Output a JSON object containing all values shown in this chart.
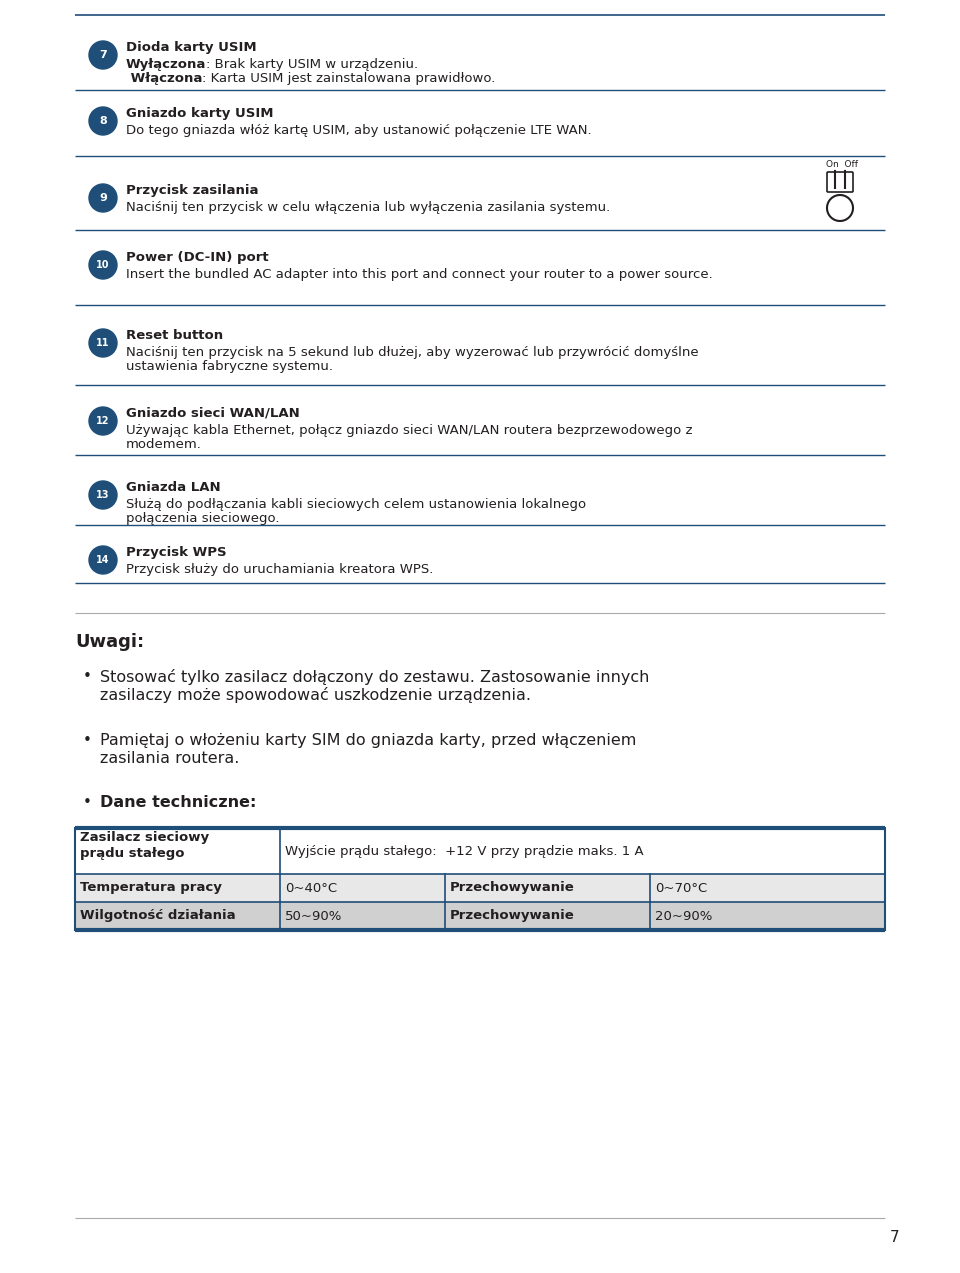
{
  "bg_color": "#ffffff",
  "page_bg": "#ffffff",
  "text_color": "#231f20",
  "blue_color": "#1f4e79",
  "circle_bg": "#1f4e79",
  "circle_text": "#ffffff",
  "line_color": "#1f4e79",
  "light_line_color": "#888888",
  "page_number": "7",
  "items": [
    {
      "num": "7",
      "title": "Dioda karty USIM",
      "lines": [
        [
          {
            "bold": true,
            "text": "Wyłączona"
          },
          {
            "bold": false,
            "text": ": Brak karty USIM w urządzeniu."
          }
        ],
        [
          {
            "bold": true,
            "text": " Włączona"
          },
          {
            "bold": false,
            "text": ": Karta USIM jest zainstalowana prawidłowo."
          }
        ]
      ]
    },
    {
      "num": "8",
      "title": "Gniazdo karty USIM",
      "lines": [
        [
          {
            "bold": false,
            "text": "Do tego gniazda włóż kartę USIM, aby ustanowić połączenie LTE WAN."
          }
        ]
      ]
    },
    {
      "num": "9",
      "title": "Przycisk zasilania",
      "lines": [
        [
          {
            "bold": false,
            "text": "Naciśnij ten przycisk w celu włączenia lub wyłączenia zasilania systemu."
          }
        ]
      ],
      "has_icon": true
    },
    {
      "num": "10",
      "title": "Power (DC-IN) port",
      "lines": [
        [
          {
            "bold": false,
            "text": "Insert the bundled AC adapter into this port and connect your router to a power source."
          }
        ]
      ]
    },
    {
      "num": "11",
      "title": "Reset button",
      "lines": [
        [
          {
            "bold": false,
            "text": "Naciśnij ten przycisk na 5 sekund lub dłużej, aby wyzerować lub przywrócić domyślne"
          }
        ],
        [
          {
            "bold": false,
            "text": "ustawienia fabryczne systemu."
          }
        ]
      ]
    },
    {
      "num": "12",
      "title": "Gniazdo sieci WAN/LAN",
      "lines": [
        [
          {
            "bold": false,
            "text": "Używając kabla Ethernet, połącz gniazdo sieci WAN/LAN routera bezprzewodowego z"
          }
        ],
        [
          {
            "bold": false,
            "text": "modemem."
          }
        ]
      ]
    },
    {
      "num": "13",
      "title": "Gniazda LAN",
      "lines": [
        [
          {
            "bold": false,
            "text": "Służą do podłączania kabli sieciowych celem ustanowienia lokalnego"
          }
        ],
        [
          {
            "bold": false,
            "text": "połączenia sieciowego."
          }
        ]
      ]
    },
    {
      "num": "14",
      "title": "Przycisk WPS",
      "lines": [
        [
          {
            "bold": false,
            "text": "Przycisk służy do uruchamiania kreatora WPS."
          }
        ]
      ]
    }
  ],
  "uwagi_title": "Uwagi:",
  "bullets": [
    {
      "bold": false,
      "line1": "Stosować tylko zasilacz dołączony do zestawu. Zastosowanie innych",
      "line2": "zasilaczy może spowodować uszkodzenie urządzenia."
    },
    {
      "bold": false,
      "line1": "Pamiętaj o włożeniu karty SIM do gniazda karty, przed włączeniem",
      "line2": "zasilania routera."
    },
    {
      "bold": true,
      "line1": "Dane techniczne:",
      "line2": ""
    }
  ],
  "table_rows": [
    {
      "col1": "Zasilacz sieciowy\nprądu stałego",
      "col2": "Wyjście prądu stałego:  +12 V przy prądzie maks. 1 A",
      "col3": "",
      "col4": "",
      "bg": "#ffffff",
      "span": true
    },
    {
      "col1": "Temperatura pracy",
      "col2": "0~40°C",
      "col3": "Przechowywanie",
      "col4": "0~70°C",
      "bg": "#e8e8e8",
      "span": false
    },
    {
      "col1": "Wilgotność działania",
      "col2": "50~90%",
      "col3": "Przechowywanie",
      "col4": "20~90%",
      "bg": "#d0d0d0",
      "span": false
    }
  ]
}
